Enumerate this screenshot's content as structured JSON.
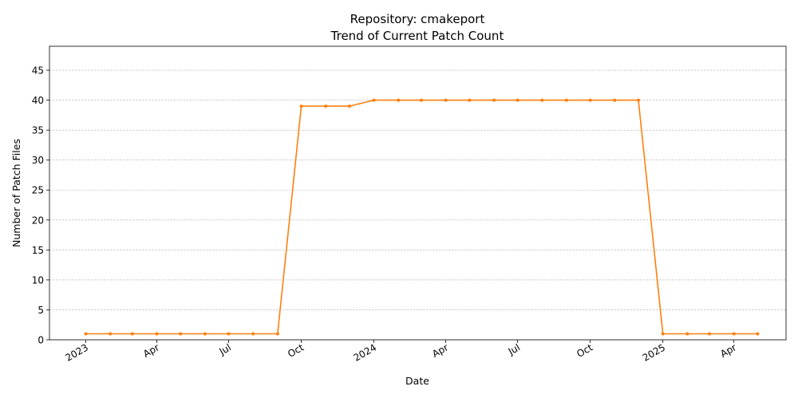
{
  "chart_data": {
    "type": "line",
    "title": "Repository: cmakeport",
    "subtitle": "Trend of Current Patch Count",
    "xlabel": "Date",
    "ylabel": "Number of Patch Files",
    "ylim": [
      0,
      49
    ],
    "xlim": [
      "2022-11-16",
      "2025-06-06"
    ],
    "grid": "y-dashed",
    "color": "#ff7f0e",
    "yticks": [
      0,
      5,
      10,
      15,
      20,
      25,
      30,
      35,
      40,
      45
    ],
    "xticks": [
      {
        "date": "2023-01-01",
        "label": "2023"
      },
      {
        "date": "2023-04-01",
        "label": "Apr"
      },
      {
        "date": "2023-07-01",
        "label": "Jul"
      },
      {
        "date": "2023-10-01",
        "label": "Oct"
      },
      {
        "date": "2024-01-01",
        "label": "2024"
      },
      {
        "date": "2024-04-01",
        "label": "Apr"
      },
      {
        "date": "2024-07-01",
        "label": "Jul"
      },
      {
        "date": "2024-10-01",
        "label": "Oct"
      },
      {
        "date": "2025-01-01",
        "label": "2025"
      },
      {
        "date": "2025-04-01",
        "label": "Apr"
      }
    ],
    "series": [
      {
        "points": [
          {
            "x": "2023-01-01",
            "y": 1
          },
          {
            "x": "2023-02-01",
            "y": 1
          },
          {
            "x": "2023-03-01",
            "y": 1
          },
          {
            "x": "2023-04-01",
            "y": 1
          },
          {
            "x": "2023-05-01",
            "y": 1
          },
          {
            "x": "2023-06-01",
            "y": 1
          },
          {
            "x": "2023-07-01",
            "y": 1
          },
          {
            "x": "2023-08-01",
            "y": 1
          },
          {
            "x": "2023-09-01",
            "y": 1
          },
          {
            "x": "2023-10-01",
            "y": 39
          },
          {
            "x": "2023-11-01",
            "y": 39
          },
          {
            "x": "2023-12-01",
            "y": 39
          },
          {
            "x": "2024-01-01",
            "y": 40
          },
          {
            "x": "2024-02-01",
            "y": 40
          },
          {
            "x": "2024-03-01",
            "y": 40
          },
          {
            "x": "2024-04-01",
            "y": 40
          },
          {
            "x": "2024-05-01",
            "y": 40
          },
          {
            "x": "2024-06-01",
            "y": 40
          },
          {
            "x": "2024-07-01",
            "y": 40
          },
          {
            "x": "2024-08-01",
            "y": 40
          },
          {
            "x": "2024-09-01",
            "y": 40
          },
          {
            "x": "2024-10-01",
            "y": 40
          },
          {
            "x": "2024-11-01",
            "y": 40
          },
          {
            "x": "2024-12-01",
            "y": 40
          },
          {
            "x": "2025-01-01",
            "y": 1
          },
          {
            "x": "2025-02-01",
            "y": 1
          },
          {
            "x": "2025-03-01",
            "y": 1
          },
          {
            "x": "2025-04-01",
            "y": 1
          },
          {
            "x": "2025-05-01",
            "y": 1
          }
        ]
      }
    ]
  }
}
